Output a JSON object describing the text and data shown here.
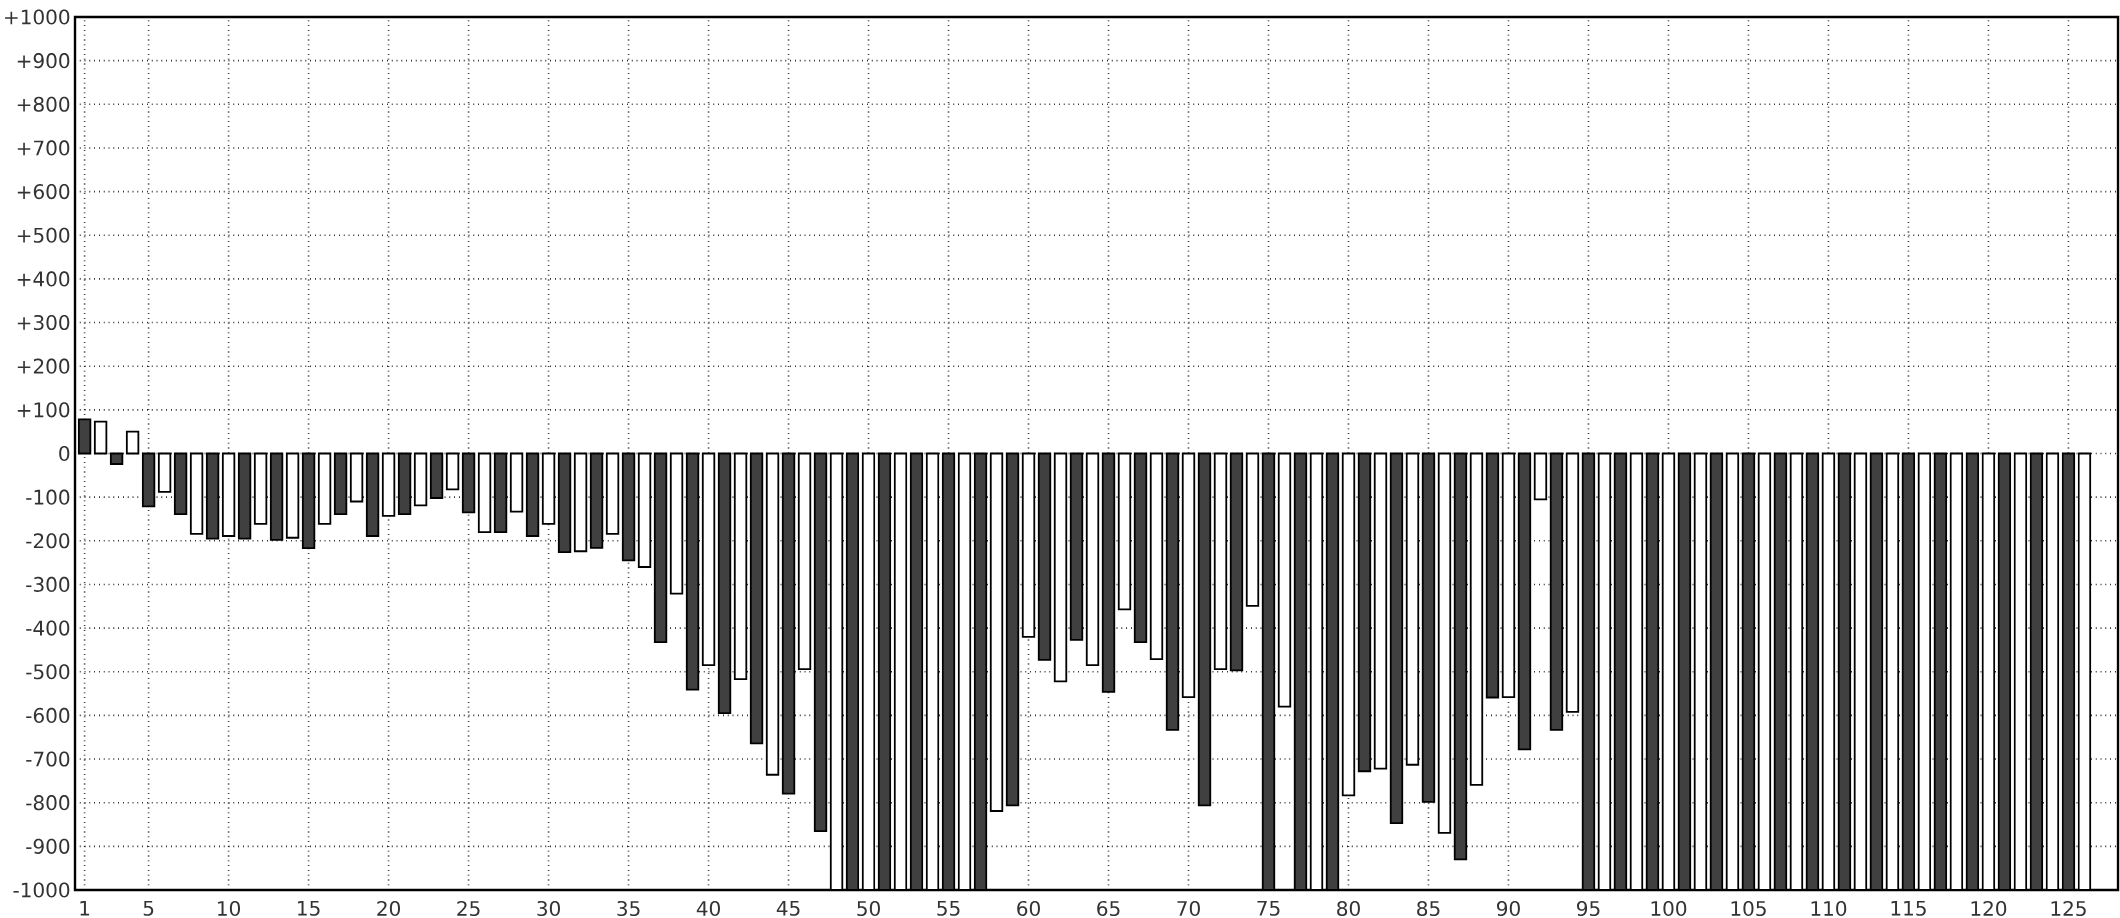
{
  "chart_data": {
    "type": "bar",
    "x": [
      1,
      2,
      3,
      4,
      5,
      6,
      7,
      8,
      9,
      10,
      11,
      12,
      13,
      14,
      15,
      16,
      17,
      18,
      19,
      20,
      21,
      22,
      23,
      24,
      25,
      26,
      27,
      28,
      29,
      30,
      31,
      32,
      33,
      34,
      35,
      36,
      37,
      38,
      39,
      40,
      41,
      42,
      43,
      44,
      45,
      46,
      47,
      48,
      49,
      50,
      51,
      52,
      53,
      54,
      55,
      56,
      57,
      58,
      59,
      60,
      61,
      62,
      63,
      64,
      65,
      66,
      67,
      68,
      69,
      70,
      71,
      72,
      73,
      74,
      75,
      76,
      77,
      78,
      79,
      80,
      81,
      82,
      83,
      84,
      85,
      86,
      87,
      88,
      89,
      90,
      91,
      92,
      93,
      94,
      95,
      96,
      97,
      98,
      99,
      100,
      101,
      102,
      103,
      104,
      105,
      106,
      107,
      108,
      109,
      110,
      111,
      112,
      113,
      114,
      115,
      116,
      117,
      118,
      119,
      120,
      121,
      122,
      123,
      124,
      125,
      126
    ],
    "values": [
      78,
      73,
      -24,
      50,
      -121,
      -88,
      -139,
      -184,
      -195,
      -189,
      -195,
      -161,
      -198,
      -193,
      -217,
      -161,
      -139,
      -110,
      -189,
      -143,
      -139,
      -119,
      -102,
      -82,
      -135,
      -180,
      -180,
      -133,
      -189,
      -161,
      -226,
      -224,
      -216,
      -184,
      -245,
      -260,
      -432,
      -321,
      -541,
      -485,
      -595,
      -517,
      -664,
      -736,
      -779,
      -494,
      -865,
      -1000,
      -1000,
      -1000,
      -1000,
      -1000,
      -1000,
      -1000,
      -1000,
      -1000,
      -1000,
      -819,
      -806,
      -420,
      -473,
      -522,
      -427,
      -485,
      -546,
      -357,
      -432,
      -471,
      -633,
      -558,
      -806,
      -494,
      -497,
      -349,
      -1000,
      -580,
      -1000,
      -1000,
      -1000,
      -783,
      -728,
      -722,
      -847,
      -713,
      -798,
      -869,
      -930,
      -759,
      -559,
      -558,
      -678,
      -105,
      -633,
      -592,
      -1000,
      -1000,
      -1000,
      -1000,
      -1000,
      -1000,
      -1000,
      -1000,
      -1000,
      -1000,
      -1000,
      -1000,
      -1000,
      -1000,
      -1000,
      -1000,
      -1000,
      -1000,
      -1000,
      -1000,
      -1000,
      -1000,
      -1000,
      -1000,
      -1000,
      -1000,
      -1000,
      -1000,
      -1000,
      -1000,
      -1000,
      -1000
    ],
    "colors": [
      "#404040",
      "#ffffff",
      "#404040",
      "#ffffff",
      "#404040",
      "#ffffff",
      "#404040",
      "#ffffff",
      "#404040",
      "#ffffff",
      "#404040",
      "#ffffff",
      "#404040",
      "#ffffff",
      "#404040",
      "#ffffff",
      "#404040",
      "#ffffff",
      "#404040",
      "#ffffff",
      "#404040",
      "#ffffff",
      "#404040",
      "#ffffff",
      "#404040",
      "#ffffff",
      "#404040",
      "#ffffff",
      "#404040",
      "#ffffff",
      "#404040",
      "#ffffff",
      "#404040",
      "#ffffff",
      "#404040",
      "#ffffff",
      "#404040",
      "#ffffff",
      "#404040",
      "#ffffff",
      "#404040",
      "#ffffff",
      "#404040",
      "#ffffff",
      "#404040",
      "#ffffff",
      "#404040",
      "#ffffff",
      "#404040",
      "#ffffff",
      "#404040",
      "#ffffff",
      "#404040",
      "#ffffff",
      "#404040",
      "#ffffff",
      "#404040",
      "#ffffff",
      "#404040",
      "#ffffff",
      "#404040",
      "#ffffff",
      "#404040",
      "#ffffff",
      "#404040",
      "#ffffff",
      "#404040",
      "#ffffff",
      "#404040",
      "#ffffff",
      "#404040",
      "#ffffff",
      "#404040",
      "#ffffff",
      "#404040",
      "#ffffff",
      "#404040",
      "#ffffff",
      "#404040",
      "#ffffff",
      "#404040",
      "#ffffff",
      "#404040",
      "#ffffff",
      "#404040",
      "#ffffff",
      "#404040",
      "#ffffff",
      "#404040",
      "#ffffff",
      "#404040",
      "#ffffff",
      "#404040",
      "#ffffff",
      "#404040",
      "#ffffff",
      "#404040",
      "#ffffff",
      "#404040",
      "#ffffff",
      "#404040",
      "#ffffff",
      "#404040",
      "#ffffff",
      "#404040",
      "#ffffff",
      "#404040",
      "#ffffff",
      "#404040",
      "#ffffff",
      "#404040",
      "#ffffff",
      "#404040",
      "#ffffff",
      "#404040",
      "#ffffff",
      "#404040",
      "#ffffff",
      "#404040",
      "#ffffff",
      "#404040",
      "#ffffff",
      "#404040",
      "#ffffff",
      "#404040",
      "#ffffff"
    ],
    "xlim": [
      0.4,
      128.1
    ],
    "ylim": [
      -1000,
      1000
    ],
    "xticks": [
      1,
      5,
      10,
      15,
      20,
      25,
      30,
      35,
      40,
      45,
      50,
      55,
      60,
      65,
      70,
      75,
      80,
      85,
      90,
      95,
      100,
      105,
      110,
      115,
      120,
      125
    ],
    "yticks": [
      -1000,
      -900,
      -800,
      -700,
      -600,
      -500,
      -400,
      -300,
      -200,
      -100,
      0,
      {
        "value": 100,
        "label": "+100"
      },
      {
        "value": 200,
        "label": "+200"
      },
      {
        "value": 300,
        "label": "+300"
      },
      {
        "value": 400,
        "label": "+400"
      },
      {
        "value": 500,
        "label": "+500"
      },
      {
        "value": 600,
        "label": "+600"
      },
      {
        "value": 700,
        "label": "+700"
      },
      {
        "value": 800,
        "label": "+800"
      },
      {
        "value": 900,
        "label": "+900"
      },
      {
        "value": 1000,
        "label": "+1000"
      }
    ],
    "grid": true
  }
}
